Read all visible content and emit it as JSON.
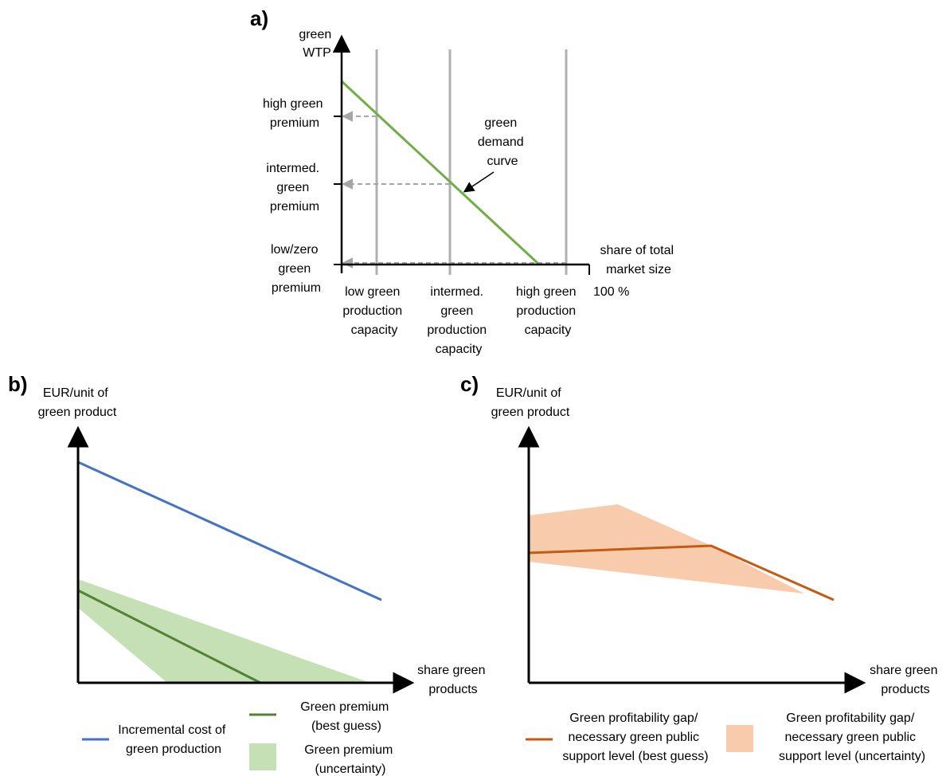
{
  "panel_a": {
    "label": "a)",
    "y_axis_title": [
      "green",
      "WTP"
    ],
    "y_ticks": [
      [
        "high green",
        "premium"
      ],
      [
        "intermed.",
        "green",
        "premium"
      ],
      [
        "low/zero",
        "green",
        "premium"
      ]
    ],
    "x_ticks": [
      [
        "low green",
        "production",
        "capacity"
      ],
      [
        "intermed.",
        "green",
        "production",
        "capacity"
      ],
      [
        "high green",
        "production",
        "capacity"
      ]
    ],
    "x_axis_title": [
      "share of total",
      "market size"
    ],
    "x_axis_end": "100 %",
    "curve_label": [
      "green",
      "demand",
      "curve"
    ],
    "colors": {
      "curve": "#70ad47",
      "capacity_lines": "#b0b0b0",
      "arrows": "#b0b0b0"
    }
  },
  "panel_b": {
    "label": "b)",
    "y_axis_title": [
      "EUR/unit of",
      "green product"
    ],
    "x_axis_title": [
      "share green",
      "products"
    ],
    "legend": {
      "cost": [
        "Incremental cost of",
        "green production"
      ],
      "premium_best": [
        "Green premium",
        "(best guess)"
      ],
      "premium_unc": [
        "Green premium",
        "(uncertainty)"
      ]
    },
    "colors": {
      "cost": "#4472c4",
      "premium": "#548235",
      "band": "#c5e0b4"
    }
  },
  "panel_c": {
    "label": "c)",
    "y_axis_title": [
      "EUR/unit of",
      "green product"
    ],
    "x_axis_title": [
      "share green",
      "products"
    ],
    "legend": {
      "gap_best": [
        "Green profitability gap/",
        "necessary green public",
        "support level (best guess)"
      ],
      "gap_unc": [
        "Green profitability gap/",
        "necessary green public",
        "support level (uncertainty)"
      ]
    },
    "colors": {
      "gap": "#c55a11",
      "band": "#f8cbad"
    }
  }
}
